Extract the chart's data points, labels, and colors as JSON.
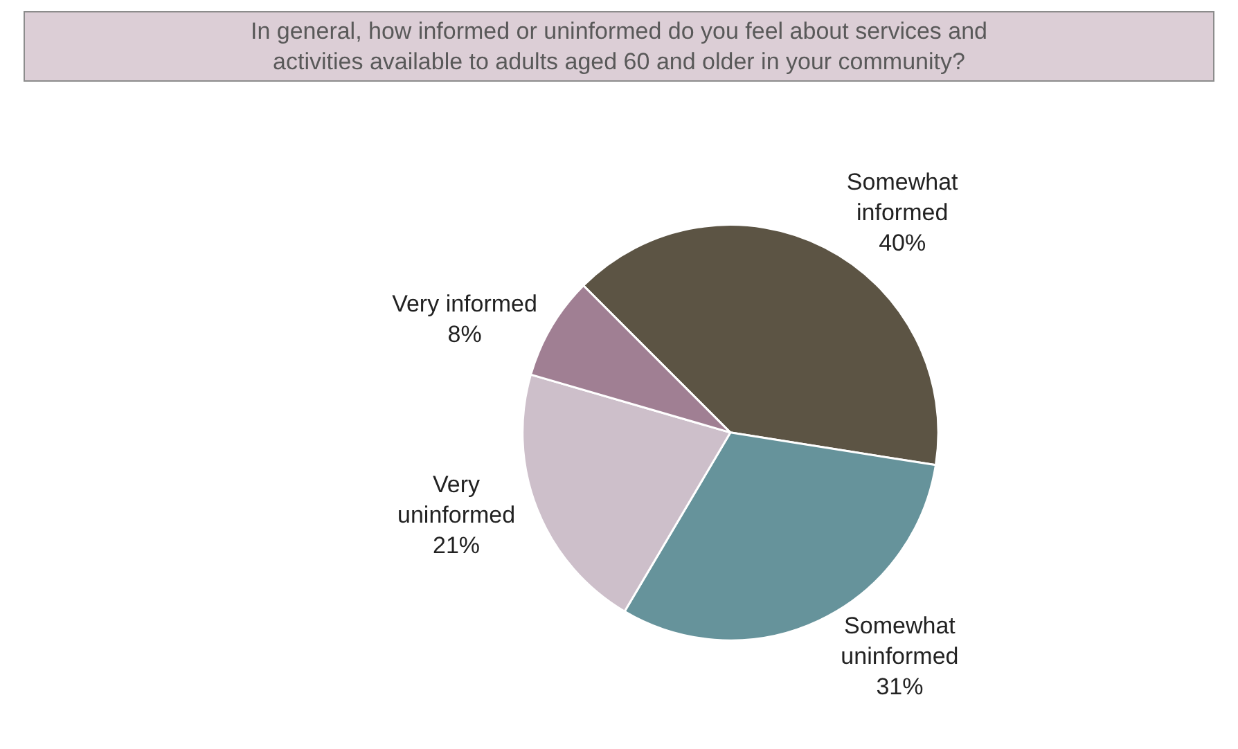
{
  "chart_data": {
    "type": "pie",
    "title": "In general, how informed or uninformed do you feel about services and activities available to adults aged 60 and older in your community?",
    "categories": [
      "Somewhat informed",
      "Somewhat uninformed",
      "Very uninformed",
      "Very informed"
    ],
    "values": [
      40,
      31,
      21,
      8
    ],
    "colors": [
      "#5c5444",
      "#66939b",
      "#cdbfca",
      "#a07f93"
    ],
    "value_labels": [
      "40%",
      "31%",
      "21%",
      "8%"
    ],
    "legend": false
  }
}
